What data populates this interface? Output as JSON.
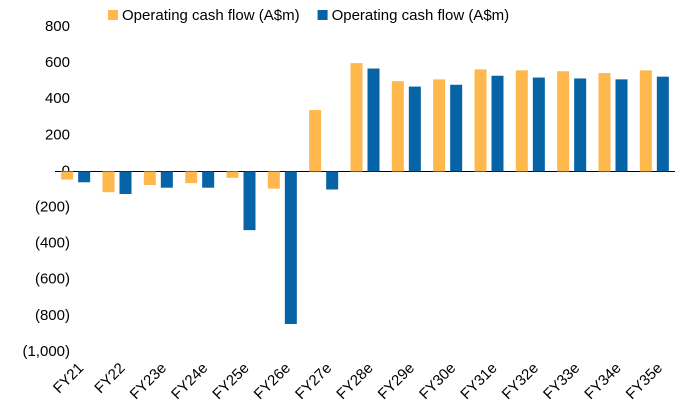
{
  "chart_data": {
    "type": "bar",
    "categories": [
      "FY21",
      "FY22",
      "FY23e",
      "FY24e",
      "FY25e",
      "FY26e",
      "FY27e",
      "FY28e",
      "FY29e",
      "FY30e",
      "FY31e",
      "FY32e",
      "FY33e",
      "FY34e",
      "FY35e"
    ],
    "series": [
      {
        "name": "Operating cash flow (A$m)",
        "color": "#ffb84d",
        "values": [
          -45,
          -115,
          -75,
          -65,
          -35,
          -95,
          340,
          600,
          500,
          510,
          565,
          560,
          555,
          545,
          560
        ]
      },
      {
        "name": "Operating cash flow (A$m)",
        "color": "#0563a6",
        "values": [
          -60,
          -125,
          -90,
          -90,
          -325,
          -845,
          -100,
          570,
          470,
          480,
          530,
          520,
          515,
          510,
          525
        ]
      }
    ],
    "ylim": [
      -1000,
      800
    ],
    "yticks": [
      {
        "value": -1000,
        "label": "(1,000)"
      },
      {
        "value": -800,
        "label": "(800)"
      },
      {
        "value": -600,
        "label": "(600)"
      },
      {
        "value": -400,
        "label": "(400)"
      },
      {
        "value": -200,
        "label": "(200)"
      },
      0,
      200,
      400,
      600,
      800
    ],
    "legend": "top",
    "grid": false
  }
}
